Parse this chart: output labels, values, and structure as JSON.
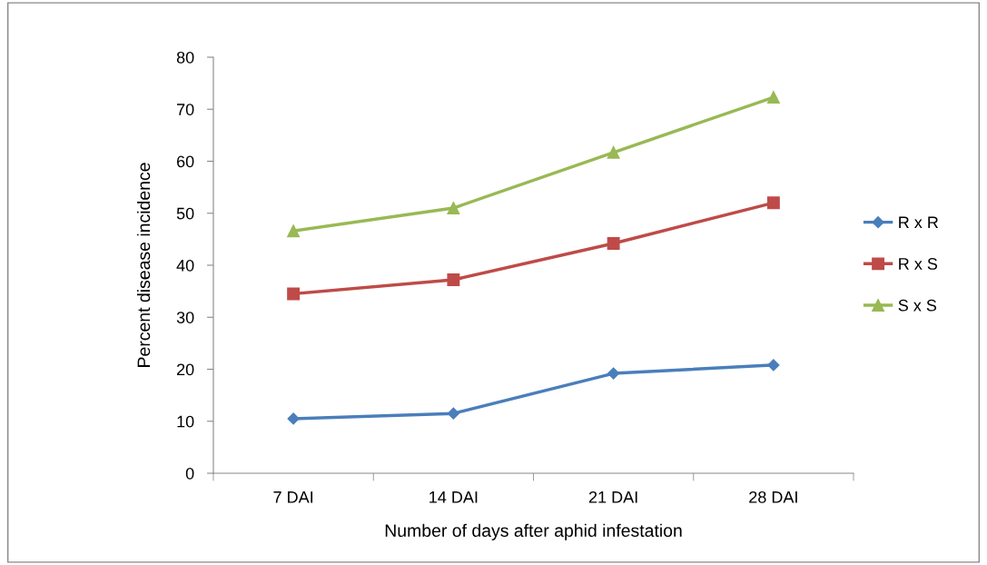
{
  "chart_data": {
    "type": "line",
    "xlabel": "Number of days after aphid infestation",
    "ylabel": "Percent disease incidence",
    "categories": [
      "7 DAI",
      "14 DAI",
      "21 DAI",
      "28 DAI"
    ],
    "ylim": [
      0,
      80
    ],
    "yticks": [
      0,
      10,
      20,
      30,
      40,
      50,
      60,
      70,
      80
    ],
    "grid": false,
    "legend": "right",
    "series": [
      {
        "name": "R x R",
        "color": "#4a7ebb",
        "marker": "diamond",
        "values": [
          10.5,
          11.5,
          19.2,
          20.8
        ]
      },
      {
        "name": "R x S",
        "color": "#be4b48",
        "marker": "square",
        "values": [
          34.5,
          37.2,
          44.2,
          52.0
        ]
      },
      {
        "name": "S x S",
        "color": "#98b954",
        "marker": "triangle",
        "values": [
          46.6,
          51.0,
          61.7,
          72.3
        ]
      }
    ]
  }
}
